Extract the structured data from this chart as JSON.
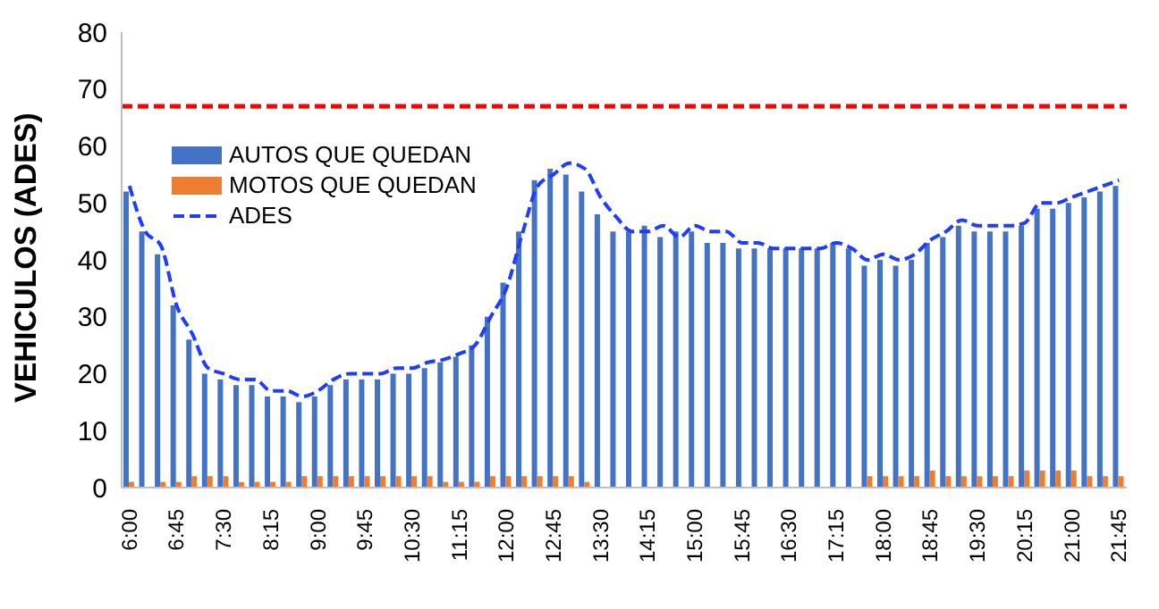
{
  "chart_data": {
    "type": "bar",
    "ylabel": "VEHICULOS (ADES)",
    "categories": [
      "6:00",
      null,
      null,
      "6:45",
      null,
      null,
      "7:30",
      null,
      null,
      "8:15",
      null,
      null,
      "9:00",
      null,
      null,
      "9:45",
      null,
      null,
      "10:30",
      null,
      null,
      "11:15",
      null,
      null,
      "12:00",
      null,
      null,
      "12:45",
      null,
      null,
      "13:30",
      null,
      null,
      "14:15",
      null,
      null,
      "15:00",
      null,
      null,
      "15:45",
      null,
      null,
      "16:30",
      null,
      null,
      "17:15",
      null,
      null,
      "18:00",
      null,
      null,
      "18:45",
      null,
      null,
      "19:30",
      null,
      null,
      "20:15",
      null,
      null,
      "21:00",
      null,
      null,
      "21:45"
    ],
    "series": [
      {
        "name": "AUTOS QUE QUEDAN",
        "color": "#4472c4",
        "values": [
          52,
          45,
          41,
          32,
          26,
          20,
          19,
          18,
          18,
          16,
          16,
          15,
          16,
          18,
          19,
          19,
          19,
          20,
          20,
          21,
          22,
          23,
          25,
          30,
          36,
          45,
          54,
          56,
          55,
          52,
          48,
          45,
          45,
          46,
          44,
          45,
          45,
          43,
          43,
          42,
          42,
          42,
          42,
          42,
          42,
          43,
          42,
          39,
          40,
          39,
          40,
          43,
          44,
          46,
          45,
          45,
          45,
          46,
          49,
          49,
          50,
          51,
          52,
          53
        ]
      },
      {
        "name": "MOTOS QUE QUEDAN",
        "color": "#ed7d31",
        "values": [
          1,
          0,
          1,
          1,
          2,
          2,
          2,
          1,
          1,
          1,
          1,
          2,
          2,
          2,
          2,
          2,
          2,
          2,
          2,
          2,
          1,
          1,
          1,
          2,
          2,
          2,
          2,
          2,
          2,
          1,
          0,
          0,
          0,
          0,
          0,
          0,
          0,
          0,
          0,
          0,
          0,
          0,
          0,
          0,
          0,
          0,
          0,
          2,
          2,
          2,
          2,
          3,
          2,
          2,
          2,
          2,
          2,
          3,
          3,
          3,
          3,
          2,
          2,
          2
        ]
      },
      {
        "name": "ADES",
        "type": "line",
        "color": "#1f3cff",
        "line_style": "dashed",
        "values": [
          53,
          45,
          42.5,
          32,
          27,
          21,
          20,
          19,
          19,
          17,
          17,
          16,
          17,
          19,
          20,
          20,
          20,
          21,
          21,
          22,
          22.5,
          23.5,
          25,
          30,
          35,
          44.5,
          53,
          55,
          57,
          56,
          51,
          47.5,
          45,
          45,
          46,
          44,
          46,
          45,
          45,
          43,
          43,
          42,
          42,
          42,
          42,
          43,
          42,
          40,
          41,
          40,
          41,
          43.5,
          45,
          47,
          46,
          46,
          46,
          46.5,
          50,
          50,
          51,
          52,
          53,
          54
        ]
      }
    ],
    "ylim": [
      0,
      80
    ],
    "yticks": [
      0,
      10,
      20,
      30,
      40,
      50,
      60,
      70,
      80
    ],
    "grid": false,
    "legend": "top left",
    "marker": "none",
    "ref_lines": [
      {
        "axis": "y",
        "value": 67,
        "color": "#ff0000",
        "line_style": "dashed"
      }
    ]
  }
}
